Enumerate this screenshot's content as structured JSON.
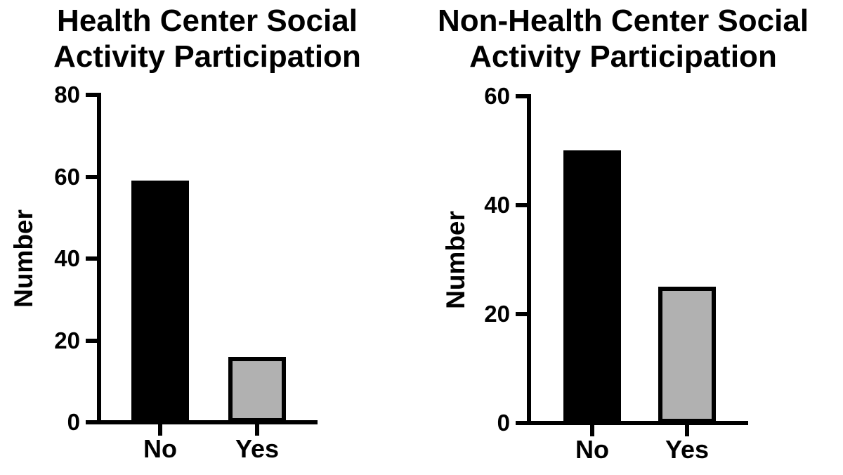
{
  "figure": {
    "background": "#ffffff",
    "text_color": "#000000"
  },
  "chart_data": [
    {
      "type": "bar",
      "title": "Health Center Social Activity Participation",
      "categories": [
        "No",
        "Yes"
      ],
      "values": [
        59,
        16
      ],
      "xlabel": "",
      "ylabel": "Number",
      "ylim": [
        0,
        80
      ],
      "yticks": [
        0,
        20,
        40,
        60,
        80
      ],
      "bar_colors": [
        "#000000",
        "#b1b1b1"
      ],
      "bar_border_color": "#000000",
      "grid": false,
      "legend": false
    },
    {
      "type": "bar",
      "title": "Non-Health Center Social Activity Participation",
      "categories": [
        "No",
        "Yes"
      ],
      "values": [
        50,
        25
      ],
      "xlabel": "",
      "ylabel": "Number",
      "ylim": [
        0,
        60
      ],
      "yticks": [
        0,
        20,
        40,
        60
      ],
      "bar_colors": [
        "#000000",
        "#b1b1b1"
      ],
      "bar_border_color": "#000000",
      "grid": false,
      "legend": false
    }
  ]
}
